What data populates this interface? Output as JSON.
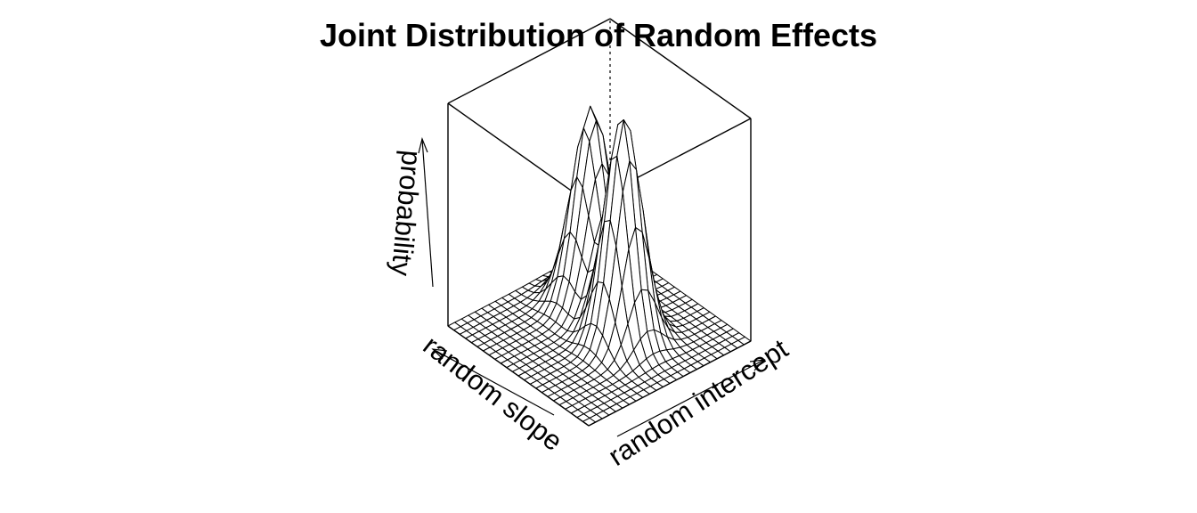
{
  "chart_data": {
    "type": "surface",
    "title": "Joint Distribution of Random Effects",
    "xlabel": "random intercept",
    "ylabel": "random slope",
    "zlabel": "probability",
    "projection": {
      "theta": -45,
      "phi": 25
    },
    "grid": {
      "x": [
        -4,
        4
      ],
      "y": [
        -4,
        4
      ],
      "n": 25
    },
    "components": [
      {
        "weight": 0.5,
        "mean_intercept": 1.0,
        "mean_slope": 1.6,
        "sd_intercept": 0.75,
        "sd_slope": 0.75
      },
      {
        "weight": 0.5,
        "mean_intercept": 0.4,
        "mean_slope": -0.9,
        "sd_intercept": 0.7,
        "sd_slope": 0.7
      }
    ],
    "shading": "none",
    "mesh_color": "#000000"
  }
}
